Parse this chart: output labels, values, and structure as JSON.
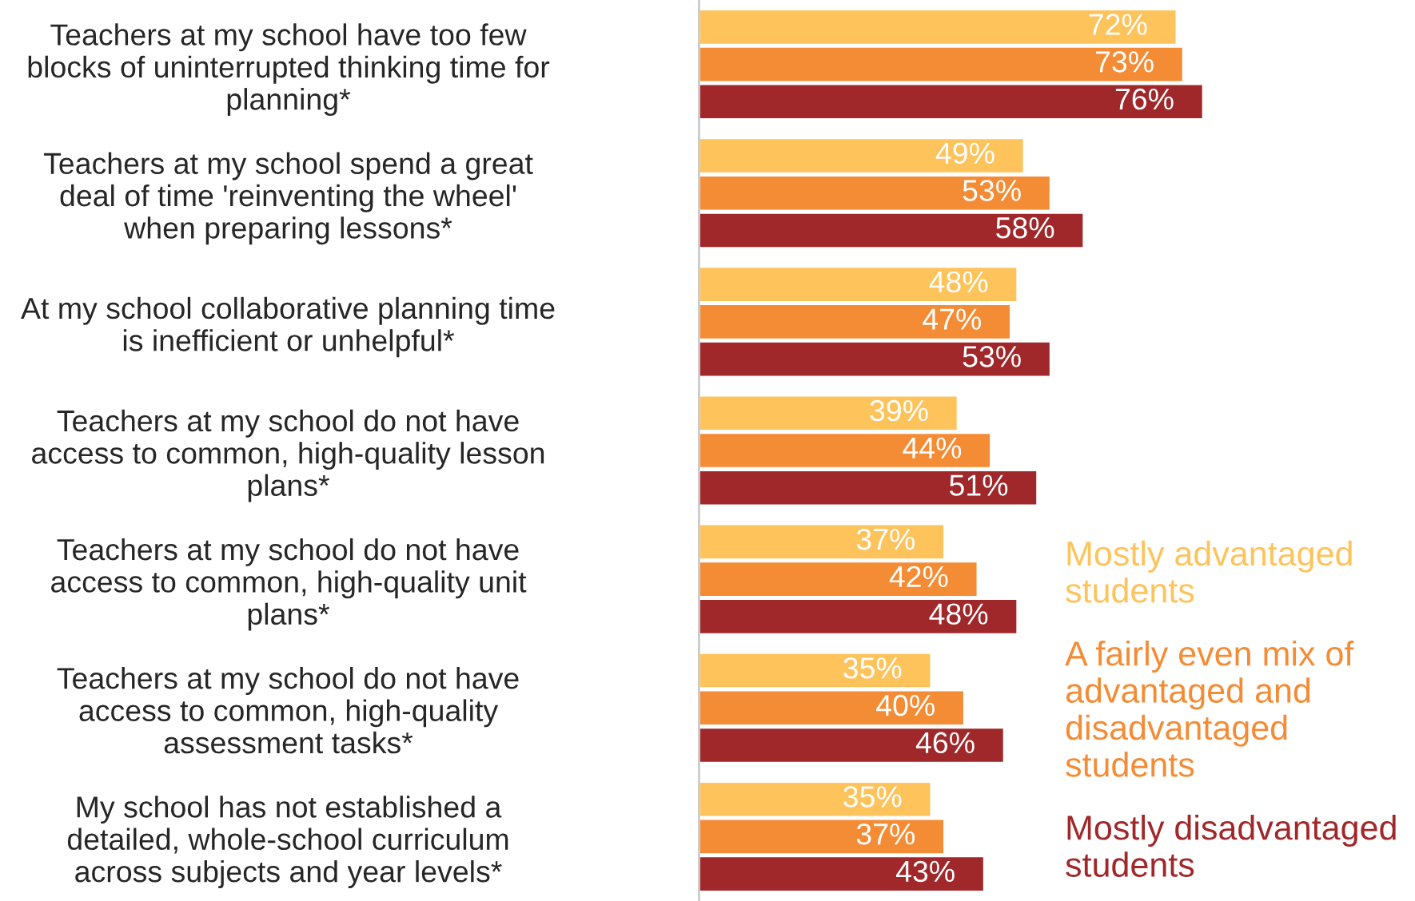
{
  "chart_data": {
    "type": "bar",
    "orientation": "horizontal",
    "tick_labels": "y",
    "legend": "bottom right",
    "grid": false,
    "categories": [
      "Teachers at my school have too few\nblocks of uninterrupted thinking time for\nplanning*",
      "Teachers at my school spend a great\ndeal of time 'reinventing the wheel'\nwhen preparing lessons*",
      "At my school collaborative planning time\nis inefficient or unhelpful*",
      "Teachers at my school do not have\naccess to common, high-quality lesson\nplans*",
      "Teachers at my school do not have\naccess to common, high-quality unit\nplans*",
      "Teachers at my school do not have\naccess to common, high-quality\nassessment tasks*",
      "My school has not established a\ndetailed, whole-school curriculum\nacross subjects and year levels*"
    ],
    "series": [
      {
        "name": "Mostly advantaged\nstudents",
        "color": "#ffc35c",
        "values": [
          72,
          49,
          48,
          39,
          37,
          35,
          35
        ],
        "value_labels": [
          "72%",
          "49%",
          "48%",
          "39%",
          "37%",
          "35%",
          "35%"
        ]
      },
      {
        "name": "A fairly even mix of\nadvantaged and\ndisadvantaged\nstudents",
        "color": "#f48c35",
        "values": [
          73,
          53,
          47,
          44,
          42,
          40,
          37
        ],
        "value_labels": [
          "73%",
          "53%",
          "47%",
          "44%",
          "42%",
          "40%",
          "37%"
        ]
      },
      {
        "name": "Mostly disadvantaged\nstudents",
        "color": "#a0282a",
        "values": [
          76,
          58,
          53,
          51,
          48,
          46,
          43
        ],
        "value_labels": [
          "76%",
          "58%",
          "53%",
          "51%",
          "48%",
          "46%",
          "43%"
        ]
      }
    ]
  }
}
